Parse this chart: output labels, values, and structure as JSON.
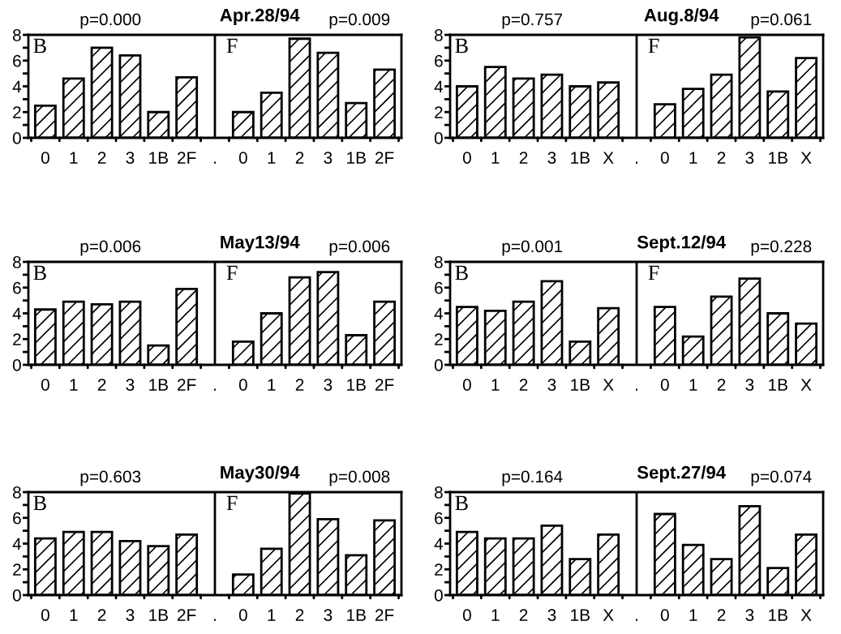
{
  "chart_data": [
    {
      "type": "bar",
      "title": "Apr.28/94",
      "categories": [
        "0",
        "1",
        "2",
        "3",
        "1B",
        "2F",
        ".",
        "0",
        "1",
        "2",
        "3",
        "1B",
        "2F"
      ],
      "values": [
        2.5,
        4.6,
        7.0,
        6.4,
        2.0,
        4.7,
        null,
        2.0,
        3.5,
        7.7,
        6.6,
        2.7,
        5.3
      ],
      "color": "#000000",
      "ylim": [
        0,
        8
      ],
      "yticks": [
        0,
        {
          "value": 1,
          "label": null
        },
        2,
        {
          "value": 3,
          "label": null
        },
        4,
        {
          "value": 5,
          "label": null
        },
        6,
        {
          "value": 7,
          "label": null
        },
        8
      ],
      "grid": false,
      "ref_lines": [
        {
          "axis": "x",
          "value": ".",
          "color": "#000000"
        }
      ],
      "annotations": [
        "p=0.000",
        "p=0.009",
        "B",
        "F"
      ]
    },
    {
      "type": "bar",
      "title": "Aug.8/94",
      "categories": [
        "0",
        "1",
        "2",
        "3",
        "1B",
        "X",
        ".",
        "0",
        "1",
        "2",
        "3",
        "1B",
        "X"
      ],
      "values": [
        4.0,
        5.5,
        4.6,
        4.9,
        4.0,
        4.3,
        null,
        2.6,
        3.8,
        4.9,
        7.8,
        3.6,
        6.2
      ],
      "color": "#000000",
      "ylim": [
        0,
        8
      ],
      "yticks": [
        0,
        {
          "value": 1,
          "label": null
        },
        2,
        {
          "value": 3,
          "label": null
        },
        4,
        {
          "value": 5,
          "label": null
        },
        6,
        {
          "value": 7,
          "label": null
        },
        8
      ],
      "grid": false,
      "ref_lines": [
        {
          "axis": "x",
          "value": ".",
          "color": "#000000"
        }
      ],
      "annotations": [
        "p=0.757",
        "p=0.061",
        "B",
        "F"
      ]
    },
    {
      "type": "bar",
      "title": "May13/94",
      "categories": [
        "0",
        "1",
        "2",
        "3",
        "1B",
        "2F",
        ".",
        "0",
        "1",
        "2",
        "3",
        "1B",
        "2F"
      ],
      "values": [
        4.3,
        4.9,
        4.7,
        4.9,
        1.5,
        5.9,
        null,
        1.8,
        4.0,
        6.8,
        7.2,
        2.3,
        4.9
      ],
      "color": "#000000",
      "ylim": [
        0,
        8
      ],
      "yticks": [
        0,
        {
          "value": 1,
          "label": null
        },
        2,
        {
          "value": 3,
          "label": null
        },
        4,
        {
          "value": 5,
          "label": null
        },
        6,
        {
          "value": 7,
          "label": null
        },
        8
      ],
      "grid": false,
      "ref_lines": [
        {
          "axis": "x",
          "value": ".",
          "color": "#000000"
        }
      ],
      "annotations": [
        "p=0.006",
        "p=0.006",
        "B",
        "F"
      ]
    },
    {
      "type": "bar",
      "title": "Sept.12/94",
      "categories": [
        "0",
        "1",
        "2",
        "3",
        "1B",
        "X",
        ".",
        "0",
        "1",
        "2",
        "3",
        "1B",
        "X"
      ],
      "values": [
        4.5,
        4.2,
        4.9,
        6.5,
        1.8,
        4.4,
        null,
        4.5,
        2.2,
        5.3,
        6.7,
        4.0,
        3.2
      ],
      "color": "#000000",
      "ylim": [
        0,
        8
      ],
      "yticks": [
        0,
        {
          "value": 1,
          "label": null
        },
        2,
        {
          "value": 3,
          "label": null
        },
        4,
        {
          "value": 5,
          "label": null
        },
        6,
        {
          "value": 7,
          "label": null
        },
        8
      ],
      "grid": false,
      "ref_lines": [
        {
          "axis": "x",
          "value": ".",
          "color": "#000000"
        }
      ],
      "annotations": [
        "p=0.001",
        "p=0.228",
        "B",
        "F"
      ]
    },
    {
      "type": "bar",
      "title": "May30/94",
      "categories": [
        "0",
        "1",
        "2",
        "3",
        "1B",
        "2F",
        ".",
        "0",
        "1",
        "2",
        "3",
        "1B",
        "2F"
      ],
      "values": [
        4.4,
        4.9,
        4.9,
        4.2,
        3.8,
        4.7,
        null,
        1.6,
        3.6,
        7.9,
        5.9,
        3.1,
        5.8
      ],
      "color": "#000000",
      "ylim": [
        0,
        8
      ],
      "yticks": [
        0,
        {
          "value": 1,
          "label": null
        },
        2,
        {
          "value": 3,
          "label": null
        },
        4,
        {
          "value": 5,
          "label": null
        },
        6,
        {
          "value": 7,
          "label": null
        },
        8
      ],
      "grid": false,
      "ref_lines": [
        {
          "axis": "x",
          "value": ".",
          "color": "#000000"
        }
      ],
      "annotations": [
        "p=0.603",
        "p=0.008",
        "B",
        "F"
      ]
    },
    {
      "type": "bar",
      "title": "Sept.27/94",
      "categories": [
        "0",
        "1",
        "2",
        "3",
        "1B",
        "X",
        ".",
        "0",
        "1",
        "2",
        "3",
        "1B",
        "X"
      ],
      "values": [
        4.9,
        4.4,
        4.4,
        5.4,
        2.8,
        4.7,
        null,
        6.3,
        3.9,
        2.8,
        6.9,
        2.1,
        4.7
      ],
      "color": "#000000",
      "ylim": [
        0,
        8
      ],
      "yticks": [
        0,
        {
          "value": 1,
          "label": null
        },
        2,
        {
          "value": 3,
          "label": null
        },
        4,
        {
          "value": 5,
          "label": null
        },
        6,
        {
          "value": 7,
          "label": null
        },
        8
      ],
      "grid": false,
      "ref_lines": [
        {
          "axis": "x",
          "value": ".",
          "color": "#000000"
        }
      ],
      "annotations": [
        "p=0.164",
        "p=0.074",
        "B"
      ]
    }
  ]
}
